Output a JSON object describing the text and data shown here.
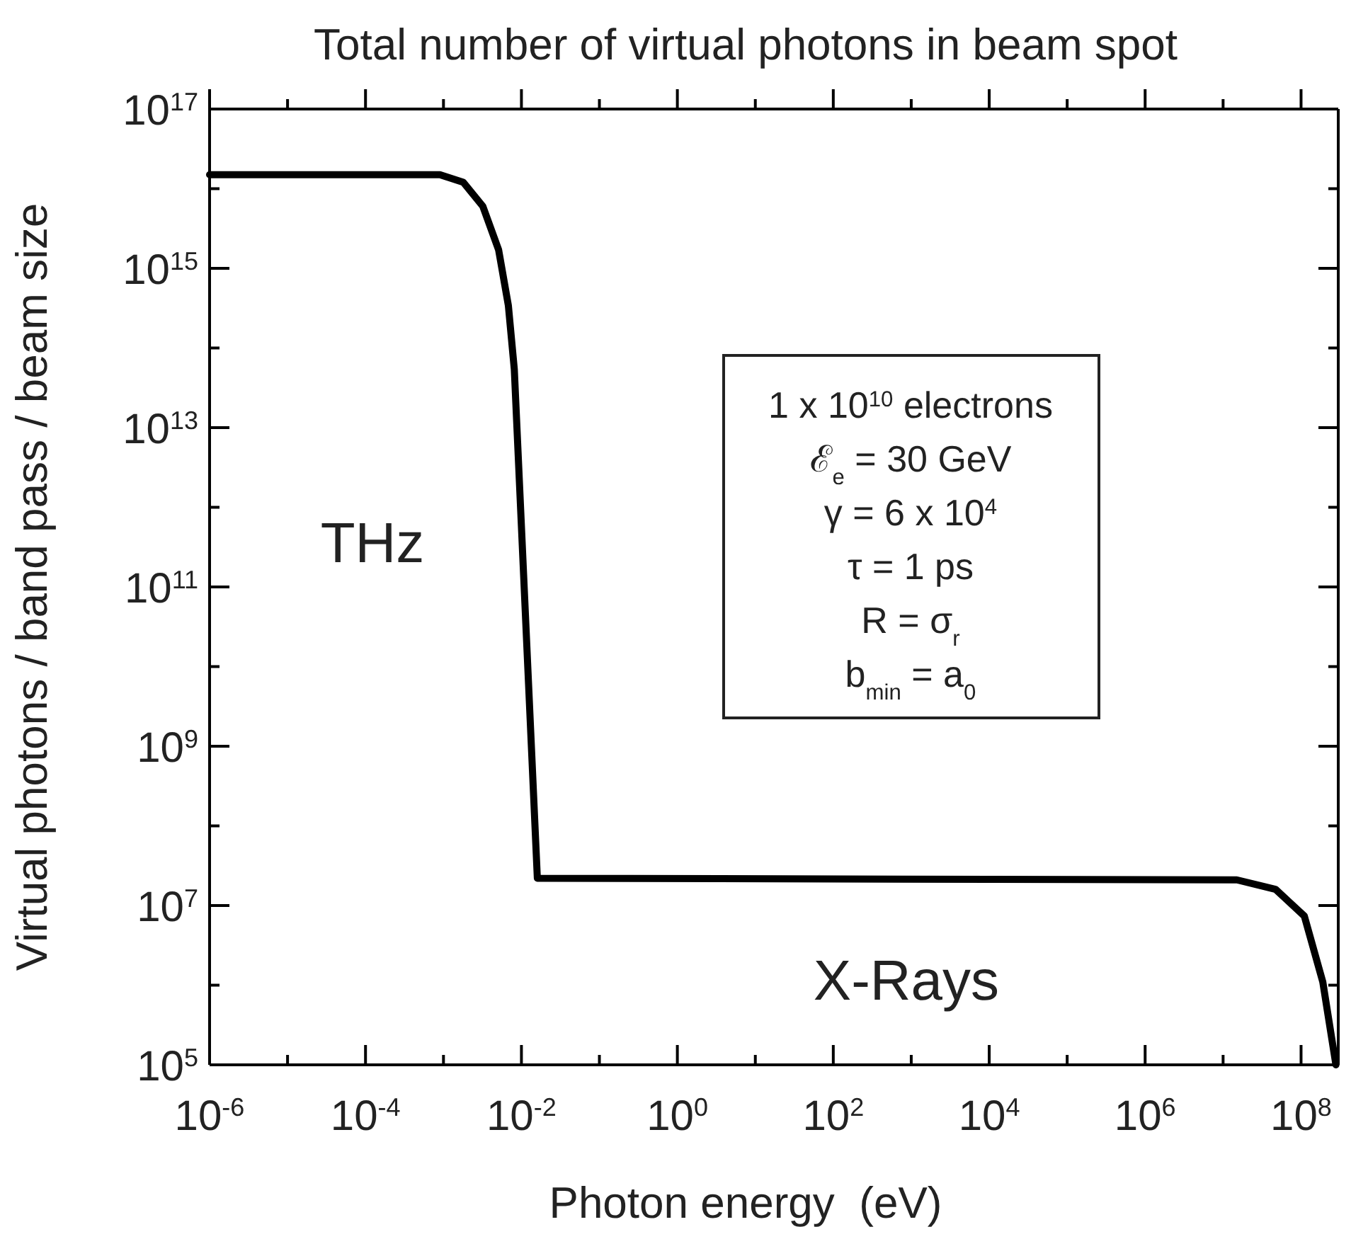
{
  "chart_data": {
    "type": "line",
    "title": "Total number of virtual photons in beam spot",
    "xlabel": "Photon energy  (eV)",
    "ylabel": "Virtual photons / band pass / beam size",
    "log": "xy",
    "grid": false,
    "marker": "none",
    "line_style": "solid",
    "x": [
      1e-06,
      0.0009,
      0.0018,
      0.0032,
      0.0051,
      0.0068,
      0.0081,
      0.016,
      15000000.0,
      47000000.0,
      110000000.0,
      190000000.0,
      280000000.0
    ],
    "series": [
      {
        "color": "#000000",
        "values": [
          1.5e+16,
          1.5e+16,
          1.2e+16,
          6000000000000000.0,
          1700000000000000.0,
          340000000000000.0,
          54000000000000.0,
          22000000.0,
          21000000.0,
          16000000.0,
          7400000.0,
          1100000.0,
          100000.0
        ]
      }
    ],
    "xlim": [
      1e-06,
      300000000.0
    ],
    "ylim": [
      100000.0,
      1e+17
    ],
    "xticks": [
      {
        "value": 1e-06,
        "label": "10$^{-6}$"
      },
      {
        "value": 1e-05,
        "label": null
      },
      {
        "value": 0.0001,
        "label": "10$^{-4}$"
      },
      {
        "value": 0.001,
        "label": null
      },
      {
        "value": 0.01,
        "label": "10$^{-2}$"
      },
      {
        "value": 0.1,
        "label": null
      },
      {
        "value": 1,
        "label": "10$^{0}$"
      },
      {
        "value": 10,
        "label": null
      },
      {
        "value": 100,
        "label": "10$^{2}$"
      },
      {
        "value": 1000.0,
        "label": null
      },
      {
        "value": 10000.0,
        "label": "10$^{4}$"
      },
      {
        "value": 100000.0,
        "label": null
      },
      {
        "value": 1000000.0,
        "label": "10$^{6}$"
      },
      {
        "value": 10000000.0,
        "label": null
      },
      {
        "value": 100000000.0,
        "label": "10$^{8}$"
      }
    ],
    "yticks": [
      {
        "value": 100000.0,
        "label": "10$^{5}$"
      },
      {
        "value": 1000000.0,
        "label": null
      },
      {
        "value": 10000000.0,
        "label": "10$^{7}$"
      },
      {
        "value": 100000000.0,
        "label": null
      },
      {
        "value": 1000000000.0,
        "label": "10$^{9}$"
      },
      {
        "value": 10000000000.0,
        "label": null
      },
      {
        "value": 100000000000.0,
        "label": "10$^{11}$"
      },
      {
        "value": 1000000000000.0,
        "label": null
      },
      {
        "value": 10000000000000.0,
        "label": "10$^{13}$"
      },
      {
        "value": 100000000000000.0,
        "label": null
      },
      {
        "value": 1000000000000000.0,
        "label": "10$^{15}$"
      },
      {
        "value": 1e+16,
        "label": null
      },
      {
        "value": 1e+17,
        "label": "10$^{17}$"
      }
    ],
    "annotations": [
      "THz",
      "X-Rays",
      "1 x 10$^{10}$ electrons",
      "ℰ$_{e}$ = 30 GeV",
      "γ = 6 x 10$^{4}$",
      "τ = 1 ps",
      "R = σ$_{r}$",
      "b$_{min}$ = a$_{0}$"
    ]
  }
}
